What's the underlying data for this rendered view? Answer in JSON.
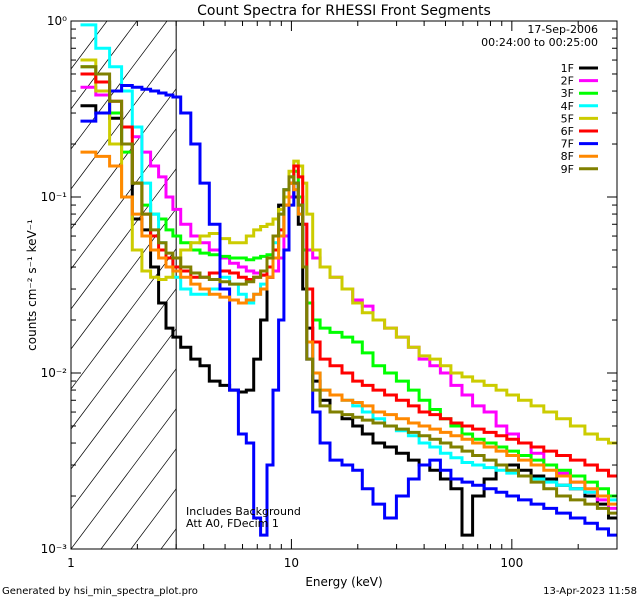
{
  "chart_data": {
    "type": "line",
    "title": "Count Spectra for RHESSI Front Segments",
    "xlabel": "Energy (keV)",
    "ylabel": "counts cm⁻² s⁻¹ keV⁻¹",
    "xscale": "log",
    "yscale": "log",
    "xlim": [
      1,
      300
    ],
    "ylim": [
      0.001,
      1
    ],
    "x_ticks": [
      {
        "value": 1,
        "label": "1"
      },
      {
        "value": 10,
        "label": "10"
      },
      {
        "value": 100,
        "label": "100"
      }
    ],
    "y_ticks": [
      {
        "value": 1,
        "label": "10⁰"
      },
      {
        "value": 0.1,
        "label": "10⁻¹"
      },
      {
        "value": 0.01,
        "label": "10⁻²"
      },
      {
        "value": 0.001,
        "label": "10⁻³"
      }
    ],
    "date": "17-Sep-2006",
    "time_range": "00:24:00 to 00:25:00",
    "annotation_lines": [
      "Includes Background",
      "Att A0, FDecim 1"
    ],
    "excluded_region": {
      "from": 1,
      "to": 3
    },
    "series": [
      {
        "name": "1F",
        "color": "#000000",
        "x": [
          1.2,
          1.4,
          1.6,
          1.8,
          2.0,
          2.2,
          2.4,
          2.6,
          2.8,
          3.0,
          3.3,
          3.7,
          4.0,
          4.5,
          5.0,
          5.5,
          6.0,
          6.5,
          7.0,
          7.5,
          8.0,
          8.5,
          9.0,
          9.5,
          10.0,
          10.5,
          11.0,
          11.5,
          12,
          13,
          14,
          16,
          18,
          20,
          22,
          25,
          28,
          32,
          36,
          40,
          45,
          50,
          56,
          63,
          70,
          80,
          90,
          100,
          115,
          130,
          150,
          170,
          200,
          230,
          260,
          290
        ],
        "y": [
          0.33,
          0.3,
          0.28,
          0.2,
          0.075,
          0.065,
          0.04,
          0.025,
          0.018,
          0.016,
          0.014,
          0.012,
          0.011,
          0.009,
          0.0085,
          0.008,
          0.0078,
          0.008,
          0.012,
          0.02,
          0.035,
          0.06,
          0.09,
          0.11,
          0.12,
          0.1,
          0.07,
          0.03,
          0.018,
          0.009,
          0.007,
          0.006,
          0.0055,
          0.005,
          0.0045,
          0.004,
          0.0038,
          0.0035,
          0.0032,
          0.003,
          0.0028,
          0.0025,
          0.0022,
          0.0012,
          0.002,
          0.0025,
          0.003,
          0.003,
          0.0028,
          0.0026,
          0.0025,
          0.0023,
          0.0022,
          0.002,
          0.0018,
          0.0015
        ]
      },
      {
        "name": "2F",
        "color": "#ff00ff",
        "x": [
          1.2,
          1.4,
          1.6,
          1.8,
          2.0,
          2.2,
          2.4,
          2.6,
          2.8,
          3.0,
          3.3,
          3.7,
          4.0,
          4.5,
          5.0,
          5.5,
          6.0,
          6.5,
          7.0,
          7.5,
          8.0,
          8.5,
          9.0,
          9.5,
          10.0,
          10.5,
          11.0,
          11.5,
          12,
          13,
          14,
          16,
          18,
          20,
          22,
          25,
          28,
          32,
          36,
          40,
          45,
          50,
          56,
          63,
          70,
          80,
          90,
          100,
          115,
          130,
          150,
          170,
          200,
          230,
          260,
          290
        ],
        "y": [
          0.42,
          0.38,
          0.3,
          0.25,
          0.22,
          0.18,
          0.15,
          0.13,
          0.1,
          0.085,
          0.07,
          0.06,
          0.055,
          0.05,
          0.045,
          0.042,
          0.04,
          0.038,
          0.037,
          0.036,
          0.035,
          0.038,
          0.045,
          0.06,
          0.1,
          0.12,
          0.1,
          0.07,
          0.05,
          0.045,
          0.04,
          0.035,
          0.03,
          0.026,
          0.024,
          0.02,
          0.018,
          0.016,
          0.014,
          0.012,
          0.011,
          0.01,
          0.0085,
          0.0075,
          0.0065,
          0.006,
          0.005,
          0.0045,
          0.004,
          0.0035,
          0.003,
          0.0027,
          0.0024,
          0.0021,
          0.0019,
          0.0017
        ]
      },
      {
        "name": "3F",
        "color": "#00ff00",
        "x": [
          1.2,
          1.4,
          1.6,
          1.8,
          2.0,
          2.2,
          2.4,
          2.6,
          2.8,
          3.0,
          3.3,
          3.7,
          4.0,
          4.5,
          5.0,
          5.5,
          6.0,
          6.5,
          7.0,
          7.5,
          8.0,
          8.5,
          9.0,
          9.5,
          10.0,
          10.5,
          11.0,
          11.5,
          12,
          13,
          14,
          16,
          18,
          20,
          22,
          25,
          28,
          32,
          36,
          40,
          45,
          50,
          56,
          63,
          70,
          80,
          90,
          100,
          115,
          130,
          150,
          170,
          200,
          230,
          260,
          290
        ],
        "y": [
          0.55,
          0.45,
          0.3,
          0.18,
          0.12,
          0.09,
          0.08,
          0.075,
          0.065,
          0.06,
          0.055,
          0.05,
          0.048,
          0.047,
          0.046,
          0.045,
          0.045,
          0.044,
          0.045,
          0.046,
          0.047,
          0.05,
          0.06,
          0.09,
          0.13,
          0.14,
          0.1,
          0.05,
          0.025,
          0.02,
          0.018,
          0.017,
          0.016,
          0.015,
          0.013,
          0.011,
          0.01,
          0.009,
          0.008,
          0.007,
          0.0062,
          0.0055,
          0.005,
          0.0045,
          0.0042,
          0.004,
          0.0038,
          0.0036,
          0.0034,
          0.0032,
          0.003,
          0.0028,
          0.0026,
          0.0024,
          0.0022,
          0.002
        ]
      },
      {
        "name": "4F",
        "color": "#00ffff",
        "x": [
          1.2,
          1.4,
          1.6,
          1.8,
          2.0,
          2.2,
          2.4,
          2.6,
          2.8,
          3.0,
          3.3,
          3.7,
          4.0,
          4.5,
          5.0,
          5.5,
          6.0,
          6.5,
          7.0,
          7.5,
          8.0,
          8.5,
          9.0,
          9.5,
          10.0,
          10.5,
          11.0,
          11.5,
          12,
          13,
          14,
          16,
          18,
          20,
          22,
          25,
          28,
          32,
          36,
          40,
          45,
          50,
          56,
          63,
          70,
          80,
          90,
          100,
          115,
          130,
          150,
          170,
          200,
          230,
          260,
          290
        ],
        "y": [
          0.95,
          0.7,
          0.55,
          0.4,
          0.25,
          0.12,
          0.08,
          0.055,
          0.045,
          0.035,
          0.03,
          0.028,
          0.028,
          0.03,
          0.035,
          0.032,
          0.028,
          0.025,
          0.028,
          0.032,
          0.04,
          0.055,
          0.08,
          0.11,
          0.13,
          0.11,
          0.08,
          0.04,
          0.015,
          0.01,
          0.008,
          0.0075,
          0.007,
          0.0065,
          0.006,
          0.0055,
          0.005,
          0.0047,
          0.0044,
          0.004,
          0.0038,
          0.0035,
          0.0033,
          0.0031,
          0.003,
          0.0029,
          0.0028,
          0.0027,
          0.0026,
          0.0025,
          0.0024,
          0.0023,
          0.0022,
          0.0021,
          0.002,
          0.0019
        ]
      },
      {
        "name": "5F",
        "color": "#cccc00",
        "x": [
          1.2,
          1.4,
          1.6,
          1.8,
          2.0,
          2.2,
          2.4,
          2.6,
          2.8,
          3.0,
          3.3,
          3.7,
          4.0,
          4.5,
          5.0,
          5.5,
          6.0,
          6.5,
          7.0,
          7.5,
          8.0,
          8.5,
          9.0,
          9.5,
          10.0,
          10.5,
          11.0,
          11.5,
          12,
          13,
          14,
          16,
          18,
          20,
          22,
          25,
          28,
          32,
          36,
          40,
          45,
          50,
          56,
          63,
          70,
          80,
          90,
          100,
          115,
          130,
          150,
          170,
          200,
          230,
          260,
          290
        ],
        "y": [
          0.6,
          0.4,
          0.2,
          0.1,
          0.05,
          0.038,
          0.035,
          0.034,
          0.035,
          0.04,
          0.05,
          0.055,
          0.06,
          0.062,
          0.058,
          0.055,
          0.055,
          0.06,
          0.065,
          0.068,
          0.07,
          0.075,
          0.085,
          0.1,
          0.14,
          0.16,
          0.15,
          0.12,
          0.08,
          0.05,
          0.04,
          0.035,
          0.03,
          0.025,
          0.022,
          0.02,
          0.018,
          0.016,
          0.014,
          0.0125,
          0.012,
          0.011,
          0.01,
          0.0095,
          0.009,
          0.0085,
          0.008,
          0.0075,
          0.007,
          0.0065,
          0.006,
          0.0055,
          0.005,
          0.0045,
          0.0042,
          0.004
        ]
      },
      {
        "name": "6F",
        "color": "#ff0000",
        "x": [
          1.2,
          1.4,
          1.6,
          1.8,
          2.0,
          2.2,
          2.4,
          2.6,
          2.8,
          3.0,
          3.3,
          3.7,
          4.0,
          4.5,
          5.0,
          5.5,
          6.0,
          6.5,
          7.0,
          7.5,
          8.0,
          8.5,
          9.0,
          9.5,
          10.0,
          10.5,
          11.0,
          11.5,
          12,
          13,
          14,
          16,
          18,
          20,
          22,
          25,
          28,
          32,
          36,
          40,
          45,
          50,
          56,
          63,
          70,
          80,
          90,
          100,
          115,
          130,
          150,
          170,
          200,
          230,
          260,
          290
        ],
        "y": [
          0.5,
          0.45,
          0.35,
          0.25,
          0.12,
          0.08,
          0.06,
          0.05,
          0.045,
          0.04,
          0.038,
          0.035,
          0.035,
          0.037,
          0.038,
          0.037,
          0.035,
          0.034,
          0.035,
          0.036,
          0.04,
          0.05,
          0.065,
          0.09,
          0.12,
          0.15,
          0.13,
          0.07,
          0.03,
          0.015,
          0.012,
          0.011,
          0.01,
          0.009,
          0.0085,
          0.008,
          0.0075,
          0.007,
          0.0065,
          0.006,
          0.0058,
          0.0055,
          0.0052,
          0.005,
          0.0048,
          0.0046,
          0.0044,
          0.0042,
          0.004,
          0.0038,
          0.0036,
          0.0034,
          0.0032,
          0.003,
          0.0028,
          0.0026
        ]
      },
      {
        "name": "7F",
        "color": "#0000ff",
        "x": [
          1.2,
          1.4,
          1.6,
          1.8,
          2.0,
          2.2,
          2.4,
          2.6,
          2.8,
          3.0,
          3.3,
          3.7,
          4.0,
          4.5,
          5.0,
          5.5,
          6.0,
          6.5,
          7.0,
          7.5,
          8.0,
          8.5,
          9.0,
          9.5,
          10.0,
          10.5,
          11.0,
          11.5,
          12,
          13,
          14,
          16,
          18,
          20,
          22,
          25,
          28,
          32,
          36,
          40,
          45,
          50,
          56,
          63,
          70,
          80,
          90,
          100,
          115,
          130,
          150,
          170,
          200,
          230,
          260,
          290
        ],
        "y": [
          0.27,
          0.3,
          0.4,
          0.43,
          0.42,
          0.41,
          0.4,
          0.39,
          0.38,
          0.37,
          0.3,
          0.2,
          0.12,
          0.07,
          0.03,
          0.008,
          0.0045,
          0.004,
          0.0015,
          0.0012,
          0.003,
          0.008,
          0.02,
          0.05,
          0.09,
          0.12,
          0.09,
          0.04,
          0.012,
          0.006,
          0.004,
          0.0032,
          0.003,
          0.0028,
          0.0022,
          0.0018,
          0.0015,
          0.002,
          0.0025,
          0.003,
          0.0032,
          0.0028,
          0.0025,
          0.0024,
          0.0023,
          0.0022,
          0.0021,
          0.002,
          0.0019,
          0.0018,
          0.0017,
          0.0016,
          0.0015,
          0.0014,
          0.0013,
          0.0012
        ]
      },
      {
        "name": "8F",
        "color": "#ff8800",
        "x": [
          1.2,
          1.4,
          1.6,
          1.8,
          2.0,
          2.2,
          2.4,
          2.6,
          2.8,
          3.0,
          3.3,
          3.7,
          4.0,
          4.5,
          5.0,
          5.5,
          6.0,
          6.5,
          7.0,
          7.5,
          8.0,
          8.5,
          9.0,
          9.5,
          10.0,
          10.5,
          11.0,
          11.5,
          12,
          13,
          14,
          16,
          18,
          20,
          22,
          25,
          28,
          32,
          36,
          40,
          45,
          50,
          56,
          63,
          70,
          80,
          90,
          100,
          115,
          130,
          150,
          170,
          200,
          230,
          260,
          290
        ],
        "y": [
          0.18,
          0.17,
          0.15,
          0.1,
          0.08,
          0.06,
          0.05,
          0.045,
          0.04,
          0.038,
          0.035,
          0.032,
          0.03,
          0.028,
          0.027,
          0.026,
          0.025,
          0.026,
          0.028,
          0.03,
          0.035,
          0.045,
          0.06,
          0.09,
          0.12,
          0.11,
          0.08,
          0.04,
          0.015,
          0.01,
          0.008,
          0.0075,
          0.007,
          0.0068,
          0.0065,
          0.006,
          0.0058,
          0.0055,
          0.0052,
          0.005,
          0.0048,
          0.0046,
          0.0044,
          0.0042,
          0.004,
          0.0038,
          0.0036,
          0.0034,
          0.0032,
          0.003,
          0.0028,
          0.0026,
          0.0024,
          0.0022,
          0.002,
          0.0018
        ]
      },
      {
        "name": "9F",
        "color": "#808000",
        "x": [
          1.2,
          1.4,
          1.6,
          1.8,
          2.0,
          2.2,
          2.4,
          2.6,
          2.8,
          3.0,
          3.3,
          3.7,
          4.0,
          4.5,
          5.0,
          5.5,
          6.0,
          6.5,
          7.0,
          7.5,
          8.0,
          8.5,
          9.0,
          9.5,
          10.0,
          10.5,
          11.0,
          11.5,
          12,
          13,
          14,
          16,
          18,
          20,
          22,
          25,
          28,
          32,
          36,
          40,
          45,
          50,
          56,
          63,
          70,
          80,
          90,
          100,
          115,
          130,
          150,
          170,
          200,
          230,
          260,
          290
        ],
        "y": [
          0.55,
          0.5,
          0.35,
          0.2,
          0.12,
          0.08,
          0.065,
          0.055,
          0.048,
          0.045,
          0.04,
          0.037,
          0.035,
          0.034,
          0.033,
          0.032,
          0.032,
          0.033,
          0.035,
          0.038,
          0.045,
          0.06,
          0.08,
          0.11,
          0.13,
          0.12,
          0.09,
          0.04,
          0.012,
          0.008,
          0.0065,
          0.006,
          0.0058,
          0.0056,
          0.0054,
          0.0052,
          0.005,
          0.0048,
          0.0046,
          0.0044,
          0.0042,
          0.004,
          0.0038,
          0.0036,
          0.0034,
          0.0032,
          0.003,
          0.0028,
          0.0026,
          0.0024,
          0.0022,
          0.002,
          0.0019,
          0.0018,
          0.0017,
          0.0016
        ]
      }
    ]
  },
  "footer": {
    "generated_by": "Generated by hsi_min_spectra_plot.pro",
    "timestamp": "13-Apr-2023 11:58"
  }
}
